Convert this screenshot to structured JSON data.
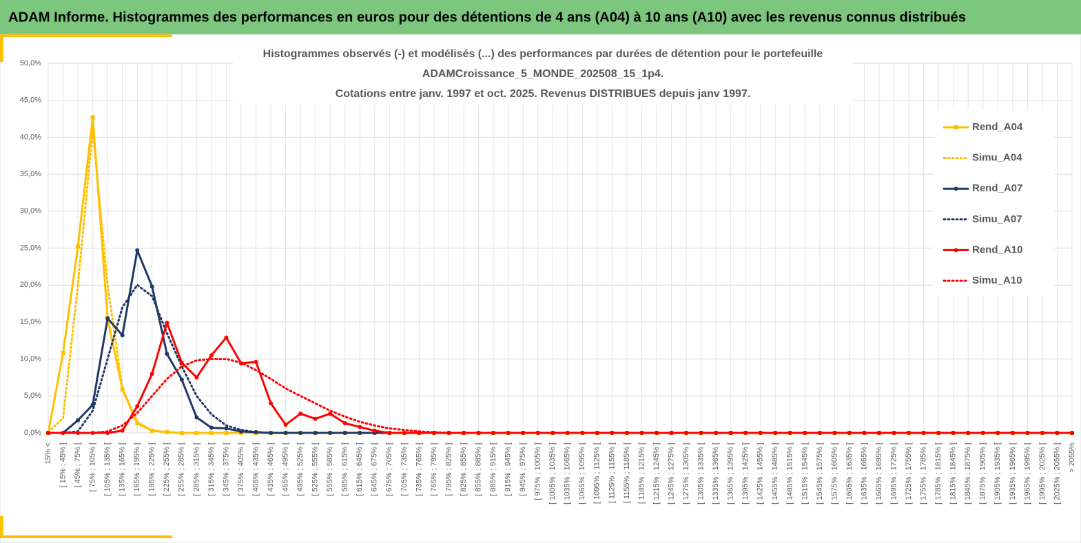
{
  "header": {
    "title": "ADAM Informe. Histogrammes des performances en euros pour des détentions de 4 ans (A04) à 10 ans (A10) avec les revenus connus distribués"
  },
  "chart_data": {
    "type": "line",
    "title": [
      "Histogrammes observés (-) et modélisés (...) des performances par durées de détention pour le portefeuille",
      "ADAMCroissance_5_MONDE_202508_15_1p4.",
      "Cotations entre janv. 1997 et oct. 2025. Revenus DISTRIBUES depuis janv 1997."
    ],
    "categories": [
      "15% <",
      "[ 15% ; 45% [",
      "[ 45% ; 75% [",
      "[ 75% ; 105% [",
      "[ 105% ; 135% [",
      "[ 135% ; 165% [",
      "[ 165% ; 195% [",
      "[ 195% ; 225% [",
      "[ 225% ; 255% [",
      "[ 255% ; 285% [",
      "[ 285% ; 315% [",
      "[ 315% ; 345% [",
      "[ 345% ; 375% [",
      "[ 375% ; 405% [",
      "[ 405% ; 435% [",
      "[ 435% ; 465% [",
      "[ 465% ; 495% [",
      "[ 495% ; 525% [",
      "[ 525% ; 555% [",
      "[ 555% ; 585% [",
      "[ 585% ; 615% [",
      "[ 615% ; 645% [",
      "[ 645% ; 675% [",
      "[ 675% ; 705% [",
      "[ 705% ; 735% [",
      "[ 735% ; 765% [",
      "[ 765% ; 795% [",
      "[ 795% ; 825% [",
      "[ 825% ; 855% [",
      "[ 855% ; 885% [",
      "[ 885% ; 915% [",
      "[ 915% ; 945% [",
      "[ 945% ; 975% [",
      "[ 975% ; 1005% [",
      "[ 1005% ; 1035% [",
      "[ 1035% ; 1065% [",
      "[ 1065% ; 1095% [",
      "[ 1095% ; 1125% [",
      "[ 1125% ; 1155% [",
      "[ 1155% ; 1185% [",
      "[ 1185% ; 1215% [",
      "[ 1215% ; 1245% [",
      "[ 1245% ; 1275% [",
      "[ 1275% ; 1305% [",
      "[ 1305% ; 1335% [",
      "[ 1335% ; 1365% [",
      "[ 1365% ; 1395% [",
      "[ 1395% ; 1425% [",
      "[ 1425% ; 1455% [",
      "[ 1455% ; 1485% [",
      "[ 1485% ; 1515% [",
      "[ 1515% ; 1545% [",
      "[ 1545% ; 1575% [",
      "[ 1575% ; 1605% [",
      "[ 1605% ; 1635% [",
      "[ 1635% ; 1665% [",
      "[ 1665% ; 1695% [",
      "[ 1695% ; 1725% [",
      "[ 1725% ; 1755% [",
      "[ 1755% ; 1785% [",
      "[ 1785% ; 1815% [",
      "[ 1815% ; 1845% [",
      "[ 1845% ; 1875% [",
      "[ 1875% ; 1905% [",
      "[ 1905% ; 1935% [",
      "[ 1935% ; 1965% [",
      "[ 1965% ; 1995% [",
      "[ 1995% ; 2025% [",
      "[ 2025% ; 2055% [",
      "> 2055%"
    ],
    "series": [
      {
        "name": "Rend_A04",
        "color": "#ffc000",
        "style": "solid",
        "marker": "square",
        "values": [
          0,
          10.8,
          25.2,
          42.7,
          15.5,
          5.9,
          1.3,
          0.3,
          0.1,
          0,
          0,
          0,
          0,
          0,
          0,
          0,
          0,
          0,
          0,
          0,
          0,
          0,
          0,
          0,
          0,
          0,
          0,
          0,
          0,
          0,
          0,
          0,
          0,
          0,
          0,
          0,
          0,
          0,
          0,
          0,
          0,
          0,
          0,
          0,
          0,
          0,
          0,
          0,
          0,
          0,
          0,
          0,
          0,
          0,
          0,
          0,
          0,
          0,
          0,
          0,
          0,
          0,
          0,
          0,
          0,
          0,
          0,
          0,
          0,
          0
        ]
      },
      {
        "name": "Simu_A04",
        "color": "#ffc000",
        "style": "dotted",
        "marker": "none",
        "values": [
          0.1,
          2,
          20,
          41,
          20,
          6,
          1.5,
          0.3,
          0.1,
          0,
          0,
          0,
          0,
          0,
          0,
          0,
          0,
          0,
          0,
          0,
          0,
          0,
          0,
          0,
          0,
          0,
          0,
          0,
          0,
          0,
          0,
          0,
          0,
          0,
          0,
          0,
          0,
          0,
          0,
          0,
          0,
          0,
          0,
          0,
          0,
          0,
          0,
          0,
          0,
          0,
          0,
          0,
          0,
          0,
          0,
          0,
          0,
          0,
          0,
          0,
          0,
          0,
          0,
          0,
          0,
          0,
          0,
          0,
          0,
          0
        ]
      },
      {
        "name": "Rend_A07",
        "color": "#1f3864",
        "style": "solid",
        "marker": "circle",
        "values": [
          0,
          0,
          1.7,
          3.8,
          15.5,
          13.2,
          24.7,
          19.8,
          10.7,
          7.2,
          2.1,
          0.7,
          0.6,
          0.2,
          0.1,
          0,
          0,
          0,
          0,
          0,
          0,
          0,
          0,
          0,
          0,
          0,
          0,
          0,
          0,
          0,
          0,
          0,
          0,
          0,
          0,
          0,
          0,
          0,
          0,
          0,
          0,
          0,
          0,
          0,
          0,
          0,
          0,
          0,
          0,
          0,
          0,
          0,
          0,
          0,
          0,
          0,
          0,
          0,
          0,
          0,
          0,
          0,
          0,
          0,
          0,
          0,
          0,
          0,
          0,
          0
        ]
      },
      {
        "name": "Simu_A07",
        "color": "#1f3864",
        "style": "dotted",
        "marker": "none",
        "values": [
          0,
          0,
          0.2,
          3,
          10,
          17,
          20,
          18.5,
          13.5,
          9,
          5,
          2.5,
          1,
          0.4,
          0.1,
          0,
          0,
          0,
          0,
          0,
          0,
          0,
          0,
          0,
          0,
          0,
          0,
          0,
          0,
          0,
          0,
          0,
          0,
          0,
          0,
          0,
          0,
          0,
          0,
          0,
          0,
          0,
          0,
          0,
          0,
          0,
          0,
          0,
          0,
          0,
          0,
          0,
          0,
          0,
          0,
          0,
          0,
          0,
          0,
          0,
          0,
          0,
          0,
          0,
          0,
          0,
          0,
          0,
          0,
          0
        ]
      },
      {
        "name": "Rend_A10",
        "color": "#ff0000",
        "style": "solid",
        "marker": "circle",
        "values": [
          0,
          0,
          0,
          0,
          0,
          0.3,
          3.6,
          8,
          14.9,
          9.5,
          7.5,
          10.5,
          12.9,
          9.4,
          9.6,
          4,
          1.1,
          2.6,
          1.9,
          2.6,
          1.3,
          0.8,
          0.3,
          0,
          0,
          0,
          0,
          0,
          0,
          0,
          0,
          0,
          0,
          0,
          0,
          0,
          0,
          0,
          0,
          0,
          0,
          0,
          0,
          0,
          0,
          0,
          0,
          0,
          0,
          0,
          0,
          0,
          0,
          0,
          0,
          0,
          0,
          0,
          0,
          0,
          0,
          0,
          0,
          0,
          0,
          0,
          0,
          0,
          0,
          0
        ]
      },
      {
        "name": "Simu_A10",
        "color": "#ff0000",
        "style": "dotted",
        "marker": "none",
        "values": [
          0,
          0,
          0,
          0,
          0.2,
          1,
          2.7,
          5,
          7.3,
          9,
          9.8,
          10,
          10,
          9.5,
          8.5,
          7.3,
          6,
          5,
          4,
          3,
          2.2,
          1.5,
          1,
          0.6,
          0.4,
          0.2,
          0.1,
          0,
          0,
          0,
          0,
          0,
          0,
          0,
          0,
          0,
          0,
          0,
          0,
          0,
          0,
          0,
          0,
          0,
          0,
          0,
          0,
          0,
          0,
          0,
          0,
          0,
          0,
          0,
          0,
          0,
          0,
          0,
          0,
          0,
          0,
          0,
          0,
          0,
          0,
          0,
          0,
          0,
          0,
          0
        ]
      }
    ],
    "ylim": [
      0,
      50
    ],
    "yticks": [
      {
        "value": 0,
        "label": "0,0%"
      },
      {
        "value": 5,
        "label": "5,0%"
      },
      {
        "value": 10,
        "label": "10,0%"
      },
      {
        "value": 15,
        "label": "15,0%"
      },
      {
        "value": 20,
        "label": "20,0%"
      },
      {
        "value": 25,
        "label": "25,0%"
      },
      {
        "value": 30,
        "label": "30,0%"
      },
      {
        "value": 35,
        "label": "35,0%"
      },
      {
        "value": 40,
        "label": "40,0%"
      },
      {
        "value": 45,
        "label": "45,0%"
      },
      {
        "value": 50,
        "label": "50,0%"
      }
    ],
    "grid": true,
    "legend": "right"
  }
}
